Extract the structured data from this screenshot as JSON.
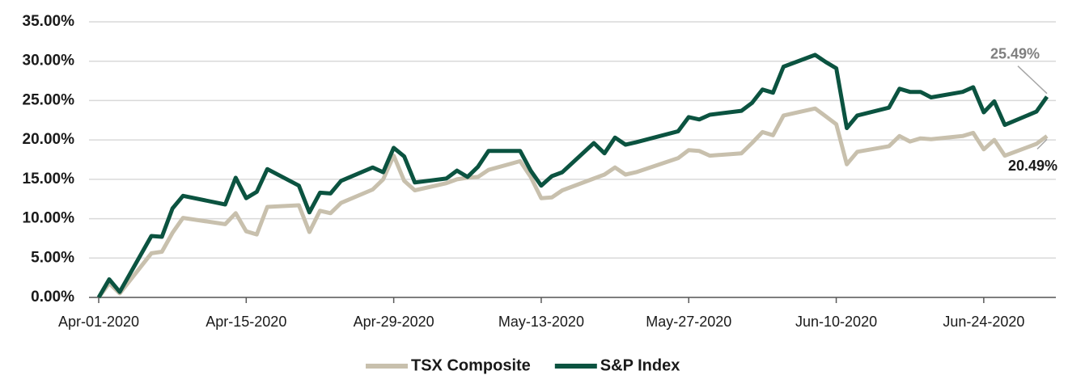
{
  "chart_data": {
    "type": "line",
    "x": [
      "Apr-01-2020",
      "Apr-02-2020",
      "Apr-03-2020",
      "Apr-06-2020",
      "Apr-07-2020",
      "Apr-08-2020",
      "Apr-09-2020",
      "Apr-13-2020",
      "Apr-14-2020",
      "Apr-15-2020",
      "Apr-16-2020",
      "Apr-17-2020",
      "Apr-20-2020",
      "Apr-21-2020",
      "Apr-22-2020",
      "Apr-23-2020",
      "Apr-24-2020",
      "Apr-27-2020",
      "Apr-28-2020",
      "Apr-29-2020",
      "Apr-30-2020",
      "May-01-2020",
      "May-04-2020",
      "May-05-2020",
      "May-06-2020",
      "May-07-2020",
      "May-08-2020",
      "May-11-2020",
      "May-12-2020",
      "May-13-2020",
      "May-14-2020",
      "May-15-2020",
      "May-18-2020",
      "May-19-2020",
      "May-20-2020",
      "May-21-2020",
      "May-22-2020",
      "May-26-2020",
      "May-27-2020",
      "May-28-2020",
      "May-29-2020",
      "Jun-01-2020",
      "Jun-02-2020",
      "Jun-03-2020",
      "Jun-04-2020",
      "Jun-05-2020",
      "Jun-08-2020",
      "Jun-09-2020",
      "Jun-10-2020",
      "Jun-11-2020",
      "Jun-12-2020",
      "Jun-15-2020",
      "Jun-16-2020",
      "Jun-17-2020",
      "Jun-18-2020",
      "Jun-19-2020",
      "Jun-22-2020",
      "Jun-23-2020",
      "Jun-24-2020",
      "Jun-25-2020",
      "Jun-26-2020",
      "Jun-29-2020",
      "Jun-30-2020"
    ],
    "series": [
      {
        "name": "TSX Composite",
        "color": "#c8c0ad",
        "values": [
          0,
          1.8,
          0.5,
          5.6,
          5.8,
          8.2,
          10.1,
          9.3,
          10.7,
          8.4,
          8.0,
          11.5,
          11.7,
          8.3,
          11.0,
          10.7,
          12.0,
          13.7,
          15.0,
          18.0,
          14.8,
          13.6,
          14.5,
          15.0,
          15.2,
          15.3,
          16.2,
          17.3,
          15.3,
          12.6,
          12.7,
          13.6,
          15.1,
          15.6,
          16.5,
          15.6,
          15.9,
          17.7,
          18.7,
          18.6,
          18.0,
          18.3,
          19.6,
          21.0,
          20.6,
          23.1,
          24.0,
          23.0,
          22.0,
          16.9,
          18.5,
          19.2,
          20.5,
          19.8,
          20.2,
          20.1,
          20.5,
          20.9,
          18.8,
          20.0,
          18.0,
          19.5,
          20.49
        ],
        "value_labels": [
          null,
          null,
          null,
          null,
          null,
          null,
          null,
          null,
          null,
          null,
          null,
          null,
          null,
          null,
          null,
          null,
          null,
          null,
          null,
          null,
          null,
          null,
          null,
          null,
          null,
          null,
          null,
          null,
          null,
          null,
          null,
          null,
          null,
          null,
          null,
          null,
          null,
          null,
          null,
          null,
          null,
          null,
          null,
          null,
          null,
          null,
          null,
          null,
          null,
          null,
          null,
          null,
          null,
          null,
          null,
          null,
          null,
          null,
          null,
          null,
          null,
          null,
          "20.49%"
        ]
      },
      {
        "name": "S&P Index",
        "color": "#0b5340",
        "values": [
          0,
          2.3,
          0.7,
          7.8,
          7.7,
          11.3,
          12.9,
          11.8,
          15.2,
          12.6,
          13.4,
          16.3,
          14.2,
          10.8,
          13.3,
          13.2,
          14.8,
          16.5,
          15.9,
          19.0,
          17.9,
          14.6,
          15.1,
          16.1,
          15.3,
          16.6,
          18.6,
          18.6,
          16.1,
          14.2,
          15.4,
          15.9,
          19.6,
          18.3,
          20.3,
          19.4,
          19.7,
          21.1,
          22.9,
          22.6,
          23.2,
          23.7,
          24.7,
          26.4,
          26.0,
          29.3,
          30.8,
          29.9,
          29.1,
          21.5,
          23.1,
          24.1,
          26.5,
          26.1,
          26.1,
          25.4,
          26.1,
          26.7,
          23.5,
          24.9,
          21.9,
          23.6,
          25.49
        ],
        "value_labels": [
          null,
          null,
          null,
          null,
          null,
          null,
          null,
          null,
          null,
          null,
          null,
          null,
          null,
          null,
          null,
          null,
          null,
          null,
          null,
          null,
          null,
          null,
          null,
          null,
          null,
          null,
          null,
          null,
          null,
          null,
          null,
          null,
          null,
          null,
          null,
          null,
          null,
          null,
          null,
          null,
          null,
          null,
          null,
          null,
          null,
          null,
          null,
          null,
          null,
          null,
          null,
          null,
          null,
          null,
          null,
          null,
          null,
          null,
          null,
          null,
          null,
          null,
          "25.49%"
        ]
      }
    ],
    "xlim": [
      "Apr-01-2020",
      "Jun-30-2020"
    ],
    "xticks": [
      "Apr-01-2020",
      "Apr-15-2020",
      "Apr-29-2020",
      "May-13-2020",
      "May-27-2020",
      "Jun-10-2020",
      "Jun-24-2020"
    ],
    "ylim": [
      0,
      35
    ],
    "yticks": [
      {
        "value": 0,
        "label": "0.00%"
      },
      {
        "value": 5,
        "label": "5.00%"
      },
      {
        "value": 10,
        "label": "10.00%"
      },
      {
        "value": 15,
        "label": "15.00%"
      },
      {
        "value": 20,
        "label": "20.00%"
      },
      {
        "value": 25,
        "label": "25.00%"
      },
      {
        "value": 30,
        "label": "30.00%"
      },
      {
        "value": 35,
        "label": "35.00%"
      }
    ],
    "grid": true,
    "legend": "bottom"
  }
}
